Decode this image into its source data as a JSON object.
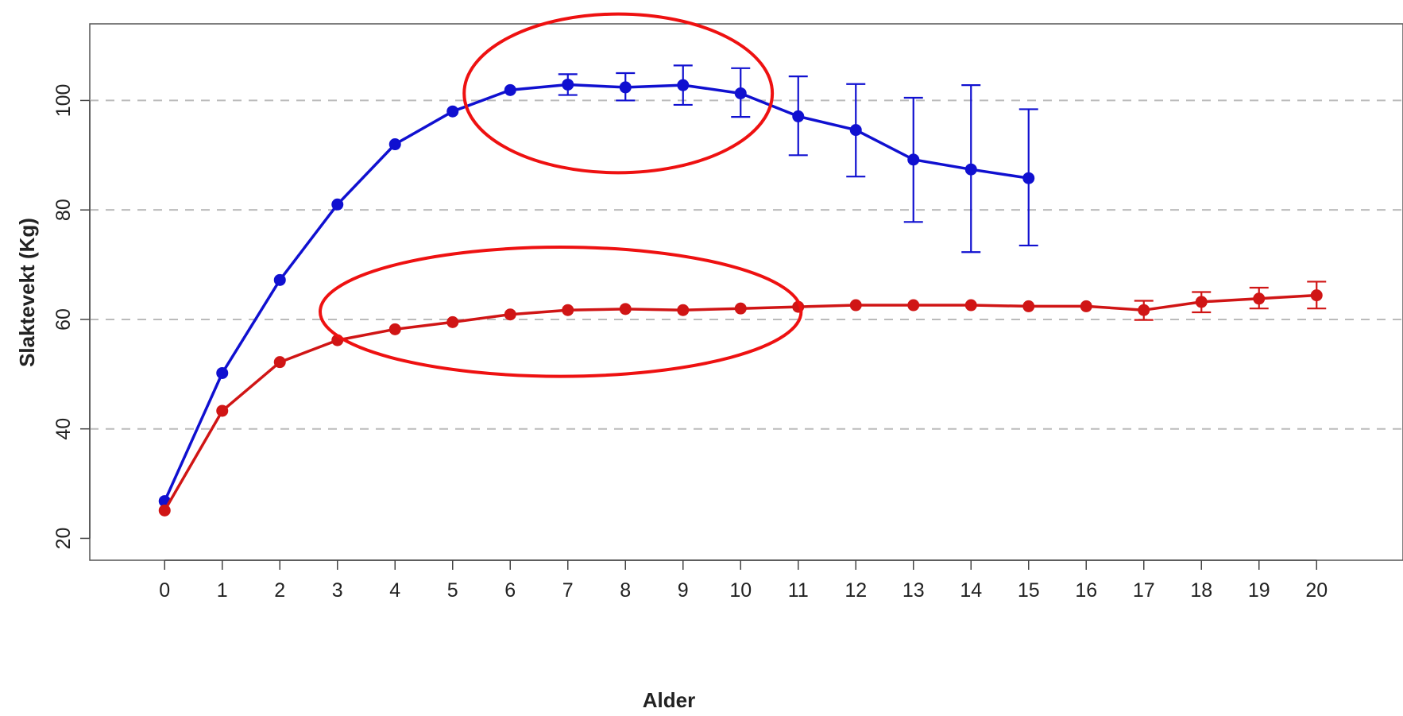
{
  "chart_data": {
    "type": "line",
    "xlabel": "Alder",
    "ylabel": "Slaktevekt (Kg)",
    "xlim": [
      -1.3,
      21.5
    ],
    "ylim": [
      16,
      114
    ],
    "x_ticks": [
      0,
      1,
      2,
      3,
      4,
      5,
      6,
      7,
      8,
      9,
      10,
      11,
      12,
      13,
      14,
      15,
      16,
      17,
      18,
      19,
      20
    ],
    "y_ticks": [
      20,
      40,
      60,
      80,
      100
    ],
    "grid": "horizontal-dashed",
    "series": [
      {
        "color": "#1010d0",
        "points": [
          {
            "x": 0,
            "y": 26.8
          },
          {
            "x": 1,
            "y": 50.2
          },
          {
            "x": 2,
            "y": 67.2
          },
          {
            "x": 3,
            "y": 81.0
          },
          {
            "x": 4,
            "y": 92.0
          },
          {
            "x": 5,
            "y": 98.0
          },
          {
            "x": 6,
            "y": 101.9
          },
          {
            "x": 7,
            "y": 102.9,
            "err_low": 101.0,
            "err_high": 104.8
          },
          {
            "x": 8,
            "y": 102.4,
            "err_low": 100.0,
            "err_high": 105.0
          },
          {
            "x": 9,
            "y": 102.8,
            "err_low": 99.2,
            "err_high": 106.4
          },
          {
            "x": 10,
            "y": 101.3,
            "err_low": 97.0,
            "err_high": 105.9
          },
          {
            "x": 11,
            "y": 97.1,
            "err_low": 90.0,
            "err_high": 104.4
          },
          {
            "x": 12,
            "y": 94.6,
            "err_low": 86.1,
            "err_high": 103.0
          },
          {
            "x": 13,
            "y": 89.2,
            "err_low": 77.8,
            "err_high": 100.5
          },
          {
            "x": 14,
            "y": 87.4,
            "err_low": 72.3,
            "err_high": 102.8
          },
          {
            "x": 15,
            "y": 85.8,
            "err_low": 73.5,
            "err_high": 98.4
          }
        ]
      },
      {
        "color": "#d01515",
        "points": [
          {
            "x": 0,
            "y": 25.1
          },
          {
            "x": 1,
            "y": 43.3
          },
          {
            "x": 2,
            "y": 52.2
          },
          {
            "x": 3,
            "y": 56.2
          },
          {
            "x": 4,
            "y": 58.2
          },
          {
            "x": 5,
            "y": 59.5
          },
          {
            "x": 6,
            "y": 60.9
          },
          {
            "x": 7,
            "y": 61.7
          },
          {
            "x": 8,
            "y": 61.9
          },
          {
            "x": 9,
            "y": 61.7
          },
          {
            "x": 10,
            "y": 62.0
          },
          {
            "x": 11,
            "y": 62.3
          },
          {
            "x": 12,
            "y": 62.6
          },
          {
            "x": 13,
            "y": 62.6
          },
          {
            "x": 14,
            "y": 62.6
          },
          {
            "x": 15,
            "y": 62.4
          },
          {
            "x": 16,
            "y": 62.4
          },
          {
            "x": 17,
            "y": 61.7,
            "err_low": 59.9,
            "err_high": 63.4
          },
          {
            "x": 18,
            "y": 63.2,
            "err_low": 61.3,
            "err_high": 65.0
          },
          {
            "x": 19,
            "y": 63.8,
            "err_low": 62.0,
            "err_high": 65.8
          },
          {
            "x": 20,
            "y": 64.4,
            "err_low": 62.0,
            "err_high": 66.9
          }
        ]
      }
    ],
    "annotations": [
      {
        "shape": "ellipse",
        "color": "#ee1111",
        "x_range": [
          5.2,
          10.55
        ],
        "y_range": [
          86.8,
          115.8
        ]
      },
      {
        "shape": "ellipse",
        "color": "#ee1111",
        "x_range": [
          2.7,
          11.05
        ],
        "y_range": [
          49.6,
          73.2
        ]
      }
    ]
  }
}
